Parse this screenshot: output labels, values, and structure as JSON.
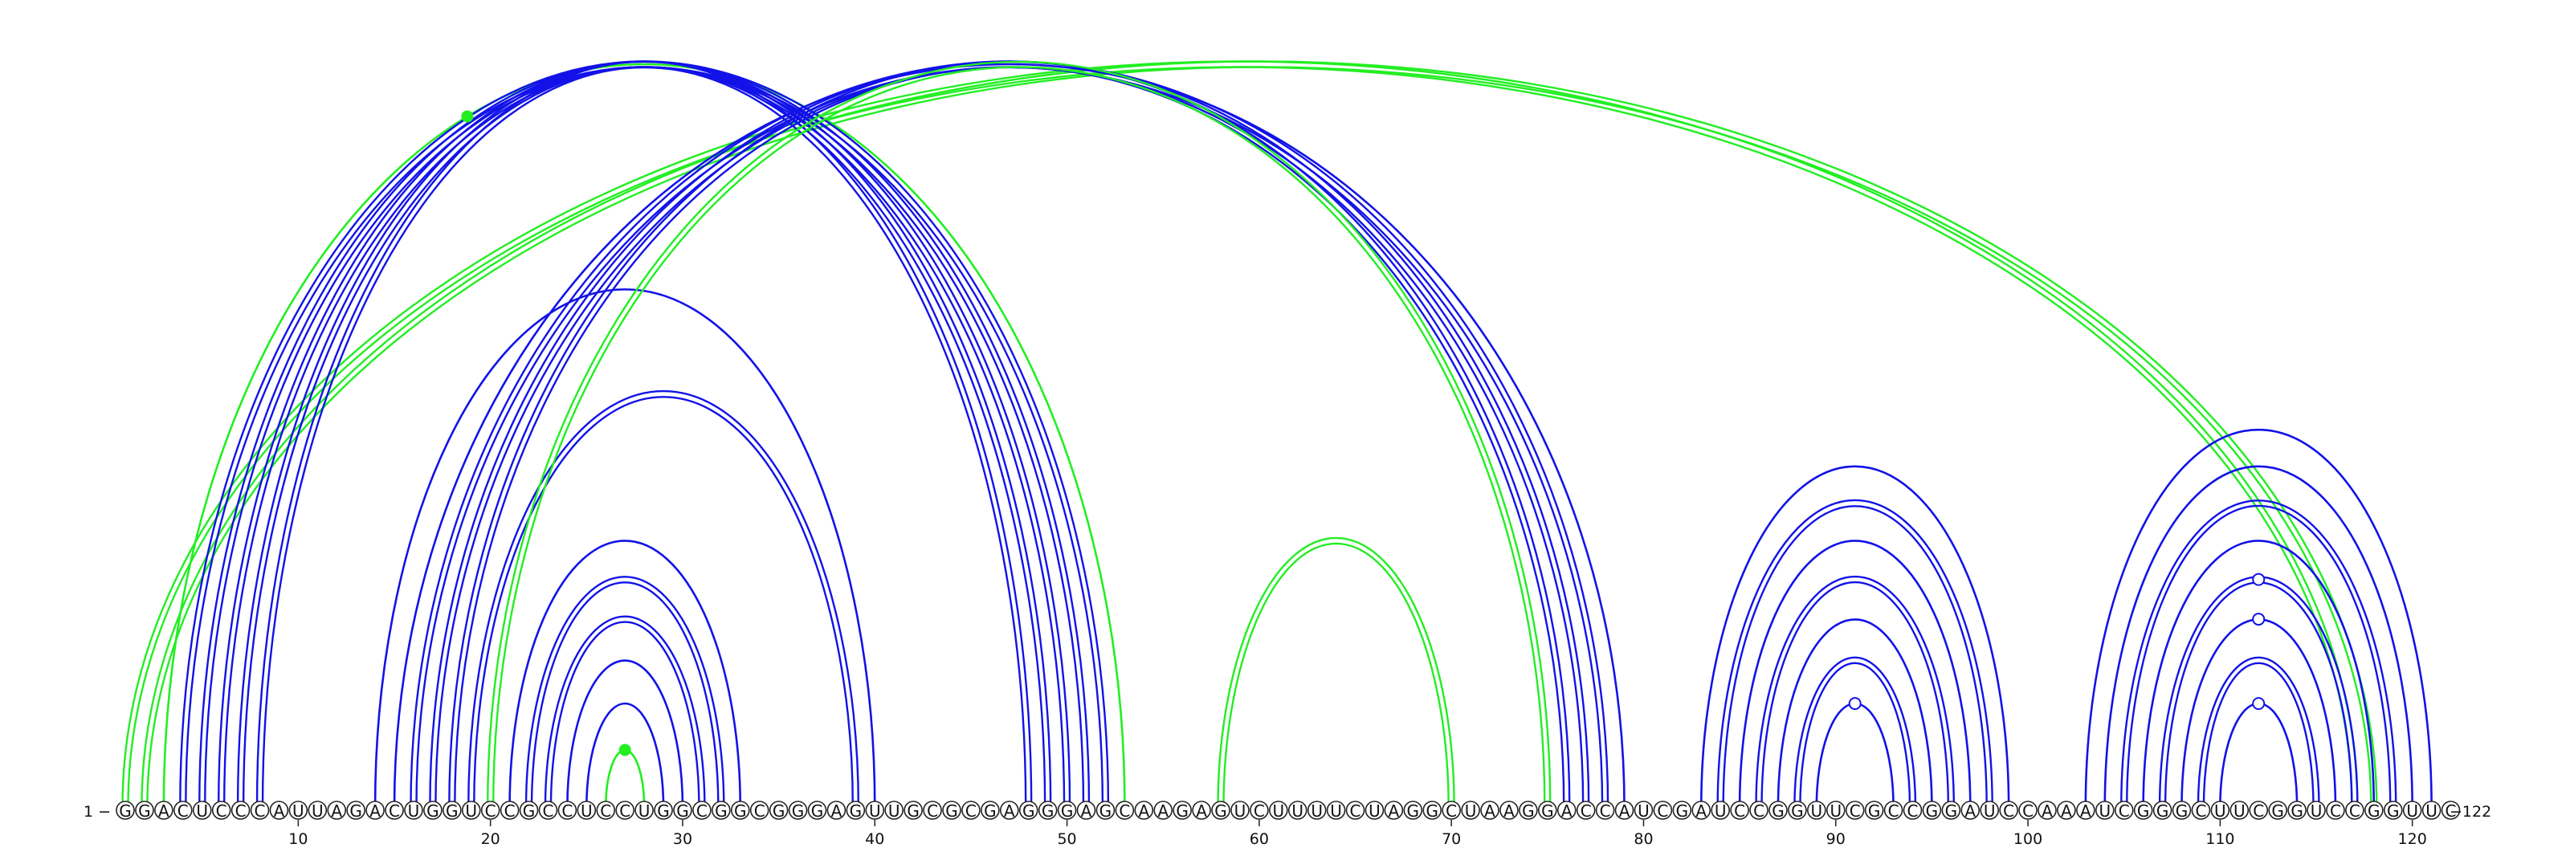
{
  "sequence": "GGACUCCCAUUAGACUGGUCCGCCUCCUGGCGGCGGGAGUUGCGCGAGGGAGCAAGAGUCUUUUCUAGGCUAAGGACCAUCGAUCCGGUUCGCCGGAUCCAAAUCGGGCUUCGGUCCGGUUC",
  "start_label": "1 −",
  "end_label": "−122",
  "tick_numbers": [
    10,
    20,
    30,
    40,
    50,
    60,
    70,
    80,
    90,
    100,
    110,
    120
  ],
  "colors": {
    "blue_arc": "#1212e8",
    "green_arc": "#22ee22",
    "marker_open_stroke": "#1212e8",
    "marker_filled": "#22ee22"
  },
  "arcs": [
    {
      "i": 1,
      "j": 117,
      "color": "green",
      "style": "double"
    },
    {
      "i": 2,
      "j": 118,
      "color": "green",
      "style": "double"
    },
    {
      "i": 3,
      "j": 53,
      "color": "green",
      "style": "single"
    },
    {
      "i": 4,
      "j": 52,
      "color": "blue",
      "style": "double"
    },
    {
      "i": 5,
      "j": 51,
      "color": "blue",
      "style": "double"
    },
    {
      "i": 6,
      "j": 50,
      "color": "blue",
      "style": "double"
    },
    {
      "i": 7,
      "j": 49,
      "color": "blue",
      "style": "double"
    },
    {
      "i": 8,
      "j": 48,
      "color": "blue",
      "style": "double"
    },
    {
      "i": 14,
      "j": 40,
      "color": "blue",
      "style": "single"
    },
    {
      "i": 15,
      "j": 79,
      "color": "blue",
      "style": "single"
    },
    {
      "i": 16,
      "j": 78,
      "color": "blue",
      "style": "double"
    },
    {
      "i": 17,
      "j": 77,
      "color": "blue",
      "style": "double"
    },
    {
      "i": 18,
      "j": 76,
      "color": "blue",
      "style": "double"
    },
    {
      "i": 19,
      "j": 39,
      "color": "blue",
      "style": "double"
    },
    {
      "i": 20,
      "j": 75,
      "color": "green",
      "style": "double"
    },
    {
      "i": 21,
      "j": 33,
      "color": "blue",
      "style": "single"
    },
    {
      "i": 22,
      "j": 32,
      "color": "blue",
      "style": "double"
    },
    {
      "i": 23,
      "j": 31,
      "color": "blue",
      "style": "double"
    },
    {
      "i": 24,
      "j": 30,
      "color": "blue",
      "style": "single"
    },
    {
      "i": 25,
      "j": 29,
      "color": "blue",
      "style": "single"
    },
    {
      "i": 26,
      "j": 28,
      "color": "green",
      "style": "single"
    },
    {
      "i": 58,
      "j": 70,
      "color": "green",
      "style": "double"
    },
    {
      "i": 83,
      "j": 99,
      "color": "blue",
      "style": "single"
    },
    {
      "i": 84,
      "j": 98,
      "color": "blue",
      "style": "double"
    },
    {
      "i": 85,
      "j": 97,
      "color": "blue",
      "style": "single"
    },
    {
      "i": 86,
      "j": 96,
      "color": "blue",
      "style": "double"
    },
    {
      "i": 87,
      "j": 95,
      "color": "blue",
      "style": "single"
    },
    {
      "i": 88,
      "j": 94,
      "color": "blue",
      "style": "double"
    },
    {
      "i": 89,
      "j": 93,
      "color": "blue",
      "style": "single"
    },
    {
      "i": 103,
      "j": 121,
      "color": "blue",
      "style": "single"
    },
    {
      "i": 104,
      "j": 120,
      "color": "blue",
      "style": "single"
    },
    {
      "i": 105,
      "j": 119,
      "color": "blue",
      "style": "double"
    },
    {
      "i": 106,
      "j": 118,
      "color": "blue",
      "style": "single"
    },
    {
      "i": 107,
      "j": 117,
      "color": "blue",
      "style": "double"
    },
    {
      "i": 108,
      "j": 116,
      "color": "blue",
      "style": "single"
    },
    {
      "i": 109,
      "j": 115,
      "color": "blue",
      "style": "double"
    },
    {
      "i": 110,
      "j": 114,
      "color": "blue",
      "style": "single"
    }
  ],
  "markers": [
    {
      "i": 26,
      "j": 28,
      "type": "filled"
    },
    {
      "i": 3,
      "j": 53,
      "type": "filled",
      "position": "crossing"
    },
    {
      "i": 89,
      "j": 93,
      "type": "open"
    },
    {
      "i": 110,
      "j": 114,
      "type": "open"
    },
    {
      "i": 108,
      "j": 116,
      "type": "open"
    },
    {
      "i": 107,
      "j": 117,
      "type": "open"
    }
  ]
}
